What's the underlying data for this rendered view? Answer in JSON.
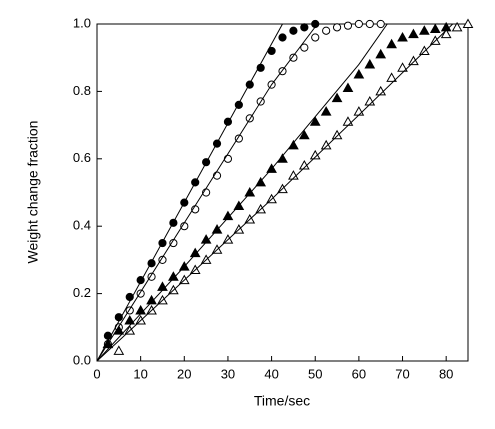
{
  "chart_data": {
    "type": "scatter",
    "xlabel": "Time/sec",
    "ylabel": "Weight change fraction",
    "xlim": [
      0,
      85
    ],
    "ylim": [
      0,
      1
    ],
    "xticks": [
      0,
      10,
      20,
      30,
      40,
      50,
      60,
      70,
      80
    ],
    "yticks": [
      {
        "value": 0,
        "label": "0.0"
      },
      0.2,
      0.4,
      0.6,
      0.8,
      {
        "value": 1,
        "label": "1.0"
      }
    ],
    "series": [
      {
        "marker": "circle",
        "filled": true,
        "color": "#000000",
        "x": [
          2.5,
          5,
          7.5,
          10,
          12.5,
          15,
          17.5,
          20,
          22.5,
          25,
          27.5,
          30,
          32.5,
          35,
          37.5,
          40,
          42.5,
          45,
          47.5,
          50
        ],
        "values": [
          0.075,
          0.13,
          0.19,
          0.24,
          0.29,
          0.35,
          0.41,
          0.47,
          0.53,
          0.59,
          0.645,
          0.71,
          0.76,
          0.82,
          0.87,
          0.92,
          0.96,
          0.98,
          0.99,
          1.0
        ]
      },
      {
        "marker": "circle",
        "filled": false,
        "color": "#000000",
        "x": [
          2.5,
          5,
          7.5,
          10,
          12.5,
          15,
          17.5,
          20,
          22.5,
          25,
          27.5,
          30,
          32.5,
          35,
          37.5,
          40,
          42.5,
          45,
          47.5,
          50,
          52.5,
          55,
          57.5,
          60,
          62.5,
          65
        ],
        "values": [
          0.05,
          0.1,
          0.15,
          0.2,
          0.25,
          0.3,
          0.35,
          0.4,
          0.45,
          0.5,
          0.55,
          0.6,
          0.66,
          0.72,
          0.77,
          0.82,
          0.86,
          0.9,
          0.93,
          0.96,
          0.98,
          0.99,
          0.995,
          1.0,
          1.0,
          1.0
        ]
      },
      {
        "marker": "triangle",
        "filled": true,
        "color": "#000000",
        "x": [
          2.5,
          5,
          7.5,
          10,
          12.5,
          15,
          17.5,
          20,
          22.5,
          25,
          27.5,
          30,
          32.5,
          35,
          37.5,
          40,
          42.5,
          45,
          47.5,
          50,
          52.5,
          55,
          57.5,
          60,
          62.5,
          65,
          67.5,
          70,
          72.5,
          75,
          77.5,
          80
        ],
        "values": [
          0.05,
          0.09,
          0.12,
          0.15,
          0.18,
          0.22,
          0.25,
          0.28,
          0.32,
          0.36,
          0.39,
          0.43,
          0.46,
          0.5,
          0.53,
          0.57,
          0.6,
          0.64,
          0.67,
          0.71,
          0.74,
          0.78,
          0.81,
          0.85,
          0.88,
          0.91,
          0.94,
          0.96,
          0.97,
          0.98,
          0.985,
          0.99
        ]
      },
      {
        "marker": "triangle",
        "filled": false,
        "color": "#000000",
        "x": [
          5,
          7.5,
          10,
          12.5,
          15,
          17.5,
          20,
          22.5,
          25,
          27.5,
          30,
          32.5,
          35,
          37.5,
          40,
          42.5,
          45,
          47.5,
          50,
          52.5,
          55,
          57.5,
          60,
          62.5,
          65,
          67.5,
          70,
          72.5,
          75,
          77.5,
          80,
          82.5,
          85
        ],
        "values": [
          0.03,
          0.09,
          0.12,
          0.15,
          0.18,
          0.21,
          0.24,
          0.27,
          0.3,
          0.33,
          0.36,
          0.39,
          0.42,
          0.45,
          0.48,
          0.51,
          0.55,
          0.58,
          0.61,
          0.64,
          0.67,
          0.71,
          0.74,
          0.77,
          0.8,
          0.84,
          0.87,
          0.89,
          0.92,
          0.95,
          0.97,
          0.99,
          1.0
        ]
      },
      {
        "style": "line",
        "color": "#000000",
        "x": [
          0,
          42.5
        ],
        "values": [
          0,
          1.0
        ]
      },
      {
        "style": "line",
        "color": "#000000",
        "x": [
          0,
          20,
          40,
          50.5
        ],
        "values": [
          0,
          0.41,
          0.82,
          1.0
        ]
      },
      {
        "style": "line",
        "color": "#000000",
        "x": [
          0,
          20,
          40,
          60,
          66.5
        ],
        "values": [
          0,
          0.28,
          0.57,
          0.88,
          1.0
        ]
      },
      {
        "style": "line",
        "color": "#000000",
        "x": [
          0,
          20,
          40,
          60,
          81.5
        ],
        "values": [
          0,
          0.24,
          0.48,
          0.73,
          1.0
        ]
      }
    ]
  }
}
